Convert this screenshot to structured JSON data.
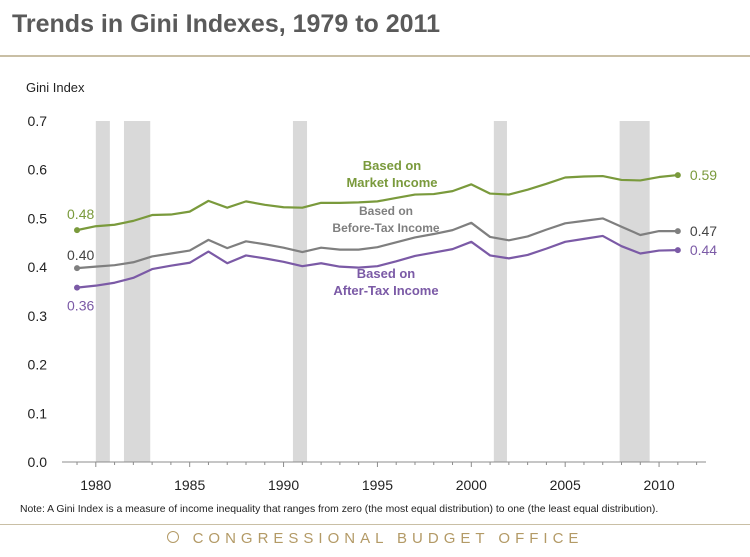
{
  "page": {
    "title": "Trends in Gini Indexes, 1979 to 2011",
    "note": "Note: A Gini Index is a measure of income inequality that ranges from zero (the most equal distribution) to one (the least equal distribution).",
    "footer": "CONGRESSIONAL BUDGET OFFICE"
  },
  "chart_data": {
    "type": "line",
    "title": "Trends in Gini Indexes, 1979 to 2011",
    "ylabel": "Gini Index",
    "xlabel": "",
    "xlim": [
      1978.2,
      2012.5
    ],
    "ylim": [
      0,
      0.7
    ],
    "yticks": [
      0,
      0.1,
      0.2,
      0.3,
      0.4,
      0.5,
      0.6,
      0.7
    ],
    "ytick_labels": [
      "0.0",
      "0.1",
      "0.2",
      "0.3",
      "0.4",
      "0.5",
      "0.6",
      "0.7"
    ],
    "xticks": [
      1980,
      1985,
      1990,
      1995,
      2000,
      2005,
      2010
    ],
    "xtick_labels": [
      "1980",
      "1985",
      "1990",
      "1995",
      "2000",
      "2005",
      "2010"
    ],
    "grid": false,
    "recession_bands": [
      [
        1980.0,
        1980.75
      ],
      [
        1981.5,
        1982.9
      ],
      [
        1990.5,
        1991.25
      ],
      [
        2001.2,
        2001.9
      ],
      [
        2007.9,
        2009.5
      ]
    ],
    "x": [
      1979,
      1980,
      1981,
      1982,
      1983,
      1984,
      1985,
      1986,
      1987,
      1988,
      1989,
      1990,
      1991,
      1992,
      1993,
      1994,
      1995,
      1996,
      1997,
      1998,
      1999,
      2000,
      2001,
      2002,
      2003,
      2004,
      2005,
      2006,
      2007,
      2008,
      2009,
      2010,
      2011
    ],
    "series": [
      {
        "name": "Based on Market Income",
        "label_lines": [
          "Based on",
          "Market Income"
        ],
        "color": "#7a9a3c",
        "start_label": "0.48",
        "end_label": "0.59",
        "values": [
          0.476,
          0.484,
          0.487,
          0.495,
          0.507,
          0.508,
          0.514,
          0.536,
          0.522,
          0.535,
          0.528,
          0.523,
          0.522,
          0.532,
          0.532,
          0.533,
          0.535,
          0.542,
          0.549,
          0.55,
          0.556,
          0.57,
          0.551,
          0.549,
          0.559,
          0.571,
          0.584,
          0.586,
          0.587,
          0.579,
          0.578,
          0.585,
          0.589
        ]
      },
      {
        "name": "Based on Before-Tax Income",
        "label_lines": [
          "Based on",
          "Before-Tax Income"
        ],
        "color": "#7f7f7f",
        "start_label": "0.40",
        "end_label": "0.47",
        "values": [
          0.398,
          0.401,
          0.404,
          0.41,
          0.422,
          0.428,
          0.434,
          0.456,
          0.439,
          0.453,
          0.447,
          0.44,
          0.431,
          0.44,
          0.436,
          0.436,
          0.441,
          0.451,
          0.461,
          0.468,
          0.476,
          0.491,
          0.462,
          0.455,
          0.463,
          0.477,
          0.49,
          0.495,
          0.5,
          0.483,
          0.466,
          0.474,
          0.474
        ]
      },
      {
        "name": "Based on After-Tax Income",
        "label_lines": [
          "Based on",
          "After-Tax Income"
        ],
        "color": "#7b5aa6",
        "start_label": "0.36",
        "end_label": "0.44",
        "values": [
          0.358,
          0.362,
          0.368,
          0.378,
          0.396,
          0.403,
          0.409,
          0.432,
          0.408,
          0.424,
          0.418,
          0.411,
          0.402,
          0.408,
          0.401,
          0.399,
          0.402,
          0.412,
          0.423,
          0.43,
          0.437,
          0.452,
          0.424,
          0.418,
          0.425,
          0.438,
          0.452,
          0.458,
          0.464,
          0.443,
          0.428,
          0.434,
          0.435
        ]
      }
    ]
  }
}
